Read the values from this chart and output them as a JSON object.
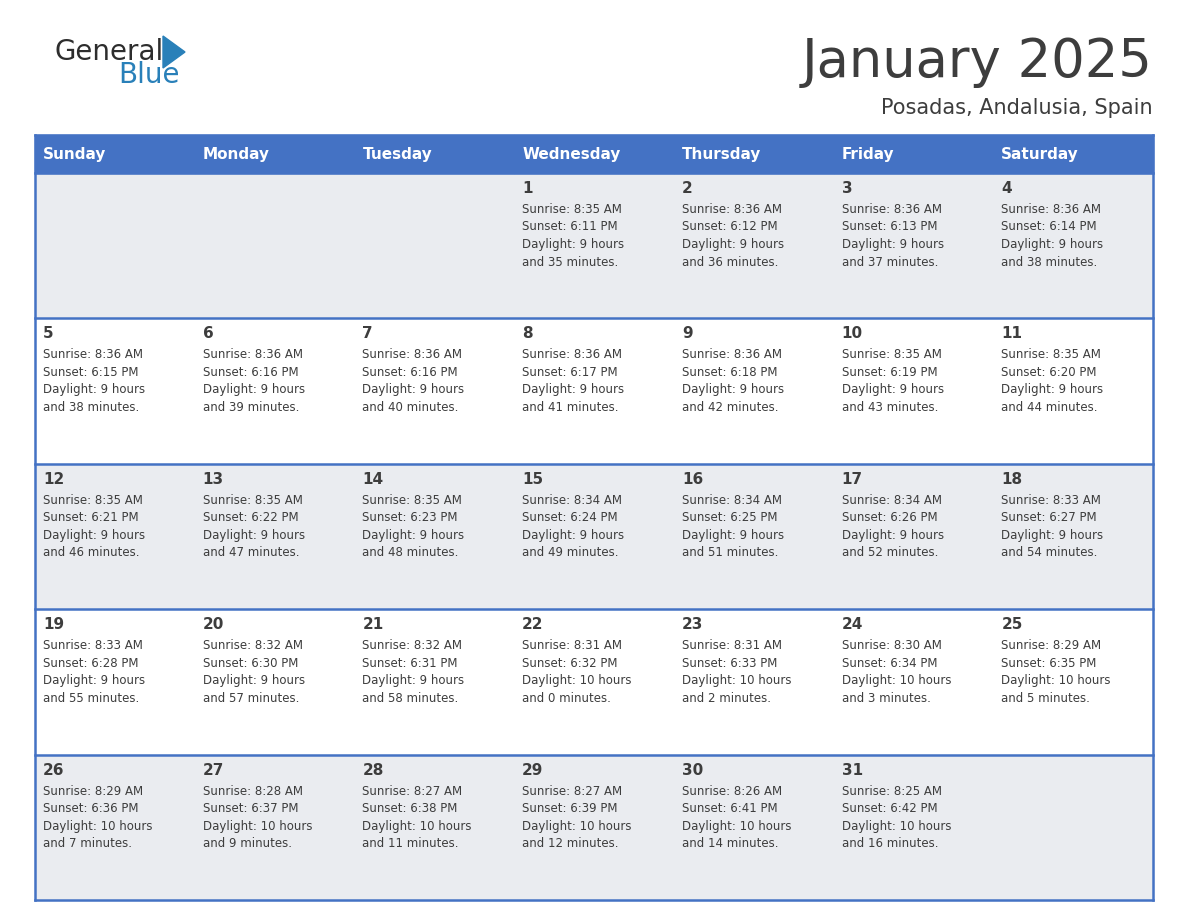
{
  "title": "January 2025",
  "subtitle": "Posadas, Andalusia, Spain",
  "header_color": "#4472C4",
  "header_text_color": "#FFFFFF",
  "day_names": [
    "Sunday",
    "Monday",
    "Tuesday",
    "Wednesday",
    "Thursday",
    "Friday",
    "Saturday"
  ],
  "weeks": [
    [
      {
        "day": "",
        "sunrise": "",
        "sunset": "",
        "daylight": ""
      },
      {
        "day": "",
        "sunrise": "",
        "sunset": "",
        "daylight": ""
      },
      {
        "day": "",
        "sunrise": "",
        "sunset": "",
        "daylight": ""
      },
      {
        "day": "1",
        "sunrise": "Sunrise: 8:35 AM",
        "sunset": "Sunset: 6:11 PM",
        "daylight": "Daylight: 9 hours\nand 35 minutes."
      },
      {
        "day": "2",
        "sunrise": "Sunrise: 8:36 AM",
        "sunset": "Sunset: 6:12 PM",
        "daylight": "Daylight: 9 hours\nand 36 minutes."
      },
      {
        "day": "3",
        "sunrise": "Sunrise: 8:36 AM",
        "sunset": "Sunset: 6:13 PM",
        "daylight": "Daylight: 9 hours\nand 37 minutes."
      },
      {
        "day": "4",
        "sunrise": "Sunrise: 8:36 AM",
        "sunset": "Sunset: 6:14 PM",
        "daylight": "Daylight: 9 hours\nand 38 minutes."
      }
    ],
    [
      {
        "day": "5",
        "sunrise": "Sunrise: 8:36 AM",
        "sunset": "Sunset: 6:15 PM",
        "daylight": "Daylight: 9 hours\nand 38 minutes."
      },
      {
        "day": "6",
        "sunrise": "Sunrise: 8:36 AM",
        "sunset": "Sunset: 6:16 PM",
        "daylight": "Daylight: 9 hours\nand 39 minutes."
      },
      {
        "day": "7",
        "sunrise": "Sunrise: 8:36 AM",
        "sunset": "Sunset: 6:16 PM",
        "daylight": "Daylight: 9 hours\nand 40 minutes."
      },
      {
        "day": "8",
        "sunrise": "Sunrise: 8:36 AM",
        "sunset": "Sunset: 6:17 PM",
        "daylight": "Daylight: 9 hours\nand 41 minutes."
      },
      {
        "day": "9",
        "sunrise": "Sunrise: 8:36 AM",
        "sunset": "Sunset: 6:18 PM",
        "daylight": "Daylight: 9 hours\nand 42 minutes."
      },
      {
        "day": "10",
        "sunrise": "Sunrise: 8:35 AM",
        "sunset": "Sunset: 6:19 PM",
        "daylight": "Daylight: 9 hours\nand 43 minutes."
      },
      {
        "day": "11",
        "sunrise": "Sunrise: 8:35 AM",
        "sunset": "Sunset: 6:20 PM",
        "daylight": "Daylight: 9 hours\nand 44 minutes."
      }
    ],
    [
      {
        "day": "12",
        "sunrise": "Sunrise: 8:35 AM",
        "sunset": "Sunset: 6:21 PM",
        "daylight": "Daylight: 9 hours\nand 46 minutes."
      },
      {
        "day": "13",
        "sunrise": "Sunrise: 8:35 AM",
        "sunset": "Sunset: 6:22 PM",
        "daylight": "Daylight: 9 hours\nand 47 minutes."
      },
      {
        "day": "14",
        "sunrise": "Sunrise: 8:35 AM",
        "sunset": "Sunset: 6:23 PM",
        "daylight": "Daylight: 9 hours\nand 48 minutes."
      },
      {
        "day": "15",
        "sunrise": "Sunrise: 8:34 AM",
        "sunset": "Sunset: 6:24 PM",
        "daylight": "Daylight: 9 hours\nand 49 minutes."
      },
      {
        "day": "16",
        "sunrise": "Sunrise: 8:34 AM",
        "sunset": "Sunset: 6:25 PM",
        "daylight": "Daylight: 9 hours\nand 51 minutes."
      },
      {
        "day": "17",
        "sunrise": "Sunrise: 8:34 AM",
        "sunset": "Sunset: 6:26 PM",
        "daylight": "Daylight: 9 hours\nand 52 minutes."
      },
      {
        "day": "18",
        "sunrise": "Sunrise: 8:33 AM",
        "sunset": "Sunset: 6:27 PM",
        "daylight": "Daylight: 9 hours\nand 54 minutes."
      }
    ],
    [
      {
        "day": "19",
        "sunrise": "Sunrise: 8:33 AM",
        "sunset": "Sunset: 6:28 PM",
        "daylight": "Daylight: 9 hours\nand 55 minutes."
      },
      {
        "day": "20",
        "sunrise": "Sunrise: 8:32 AM",
        "sunset": "Sunset: 6:30 PM",
        "daylight": "Daylight: 9 hours\nand 57 minutes."
      },
      {
        "day": "21",
        "sunrise": "Sunrise: 8:32 AM",
        "sunset": "Sunset: 6:31 PM",
        "daylight": "Daylight: 9 hours\nand 58 minutes."
      },
      {
        "day": "22",
        "sunrise": "Sunrise: 8:31 AM",
        "sunset": "Sunset: 6:32 PM",
        "daylight": "Daylight: 10 hours\nand 0 minutes."
      },
      {
        "day": "23",
        "sunrise": "Sunrise: 8:31 AM",
        "sunset": "Sunset: 6:33 PM",
        "daylight": "Daylight: 10 hours\nand 2 minutes."
      },
      {
        "day": "24",
        "sunrise": "Sunrise: 8:30 AM",
        "sunset": "Sunset: 6:34 PM",
        "daylight": "Daylight: 10 hours\nand 3 minutes."
      },
      {
        "day": "25",
        "sunrise": "Sunrise: 8:29 AM",
        "sunset": "Sunset: 6:35 PM",
        "daylight": "Daylight: 10 hours\nand 5 minutes."
      }
    ],
    [
      {
        "day": "26",
        "sunrise": "Sunrise: 8:29 AM",
        "sunset": "Sunset: 6:36 PM",
        "daylight": "Daylight: 10 hours\nand 7 minutes."
      },
      {
        "day": "27",
        "sunrise": "Sunrise: 8:28 AM",
        "sunset": "Sunset: 6:37 PM",
        "daylight": "Daylight: 10 hours\nand 9 minutes."
      },
      {
        "day": "28",
        "sunrise": "Sunrise: 8:27 AM",
        "sunset": "Sunset: 6:38 PM",
        "daylight": "Daylight: 10 hours\nand 11 minutes."
      },
      {
        "day": "29",
        "sunrise": "Sunrise: 8:27 AM",
        "sunset": "Sunset: 6:39 PM",
        "daylight": "Daylight: 10 hours\nand 12 minutes."
      },
      {
        "day": "30",
        "sunrise": "Sunrise: 8:26 AM",
        "sunset": "Sunset: 6:41 PM",
        "daylight": "Daylight: 10 hours\nand 14 minutes."
      },
      {
        "day": "31",
        "sunrise": "Sunrise: 8:25 AM",
        "sunset": "Sunset: 6:42 PM",
        "daylight": "Daylight: 10 hours\nand 16 minutes."
      },
      {
        "day": "",
        "sunrise": "",
        "sunset": "",
        "daylight": ""
      }
    ]
  ],
  "bg_color": "#FFFFFF",
  "cell_bg_light": "#EAECF0",
  "cell_bg_white": "#FFFFFF",
  "text_color": "#3d3d3d",
  "line_color": "#4472C4",
  "logo_general_color": "#2d2d2d",
  "logo_blue_color": "#2980B9",
  "header_fontsize": 11,
  "day_num_fontsize": 11,
  "cell_text_fontsize": 8.5,
  "title_fontsize": 38,
  "subtitle_fontsize": 15
}
